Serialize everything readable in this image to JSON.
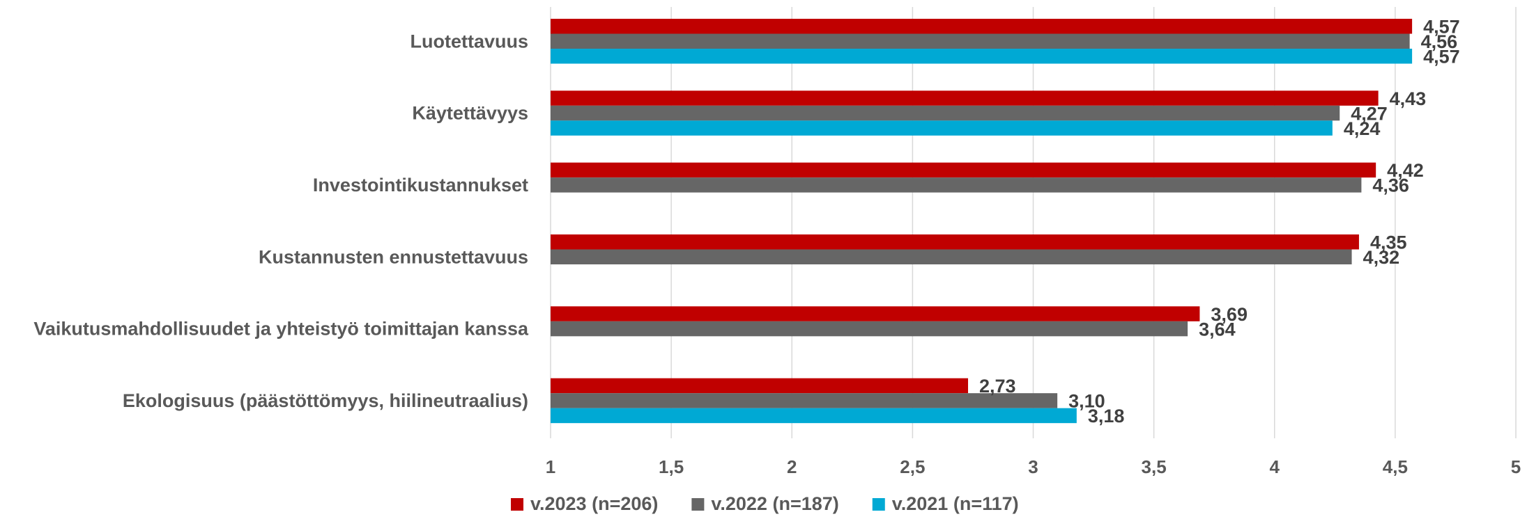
{
  "chart_data": {
    "type": "bar",
    "orientation": "horizontal",
    "categories": [
      "Luotettavuus",
      "Käytettävyys",
      "Investointikustannukset",
      "Kustannusten ennustettavuus",
      "Vaikutusmahdollisuudet ja yhteistyö toimittajan kanssa",
      "Ekologisuus (päästöttömyys, hiilineutraalius)"
    ],
    "series": [
      {
        "name": "v.2023 (n=206)",
        "color": "#C00000",
        "values": [
          4.57,
          4.43,
          4.42,
          4.35,
          3.69,
          2.73
        ],
        "labels": [
          "4,57",
          "4,43",
          "4,42",
          "4,35",
          "3,69",
          "2,73"
        ]
      },
      {
        "name": "v.2022 (n=187)",
        "color": "#666666",
        "values": [
          4.56,
          4.27,
          4.36,
          4.32,
          3.64,
          3.1
        ],
        "labels": [
          "4,56",
          "4,27",
          "4,36",
          "4,32",
          "3,64",
          "3,10"
        ]
      },
      {
        "name": "v.2021 (n=117)",
        "color": "#00A9D4",
        "values": [
          4.57,
          4.24,
          null,
          null,
          null,
          3.18
        ],
        "labels": [
          "4,57",
          "4,24",
          null,
          null,
          null,
          "3,18"
        ]
      }
    ],
    "xlim": [
      1,
      5
    ],
    "xticks": [
      1,
      1.5,
      2,
      2.5,
      3,
      3.5,
      4,
      4.5,
      5
    ],
    "xtick_labels": [
      "1",
      "1,5",
      "2",
      "2,5",
      "3",
      "3,5",
      "4",
      "4,5",
      "5"
    ],
    "grid": true,
    "legend_position": "bottom",
    "title": "",
    "xlabel": "",
    "ylabel": ""
  }
}
